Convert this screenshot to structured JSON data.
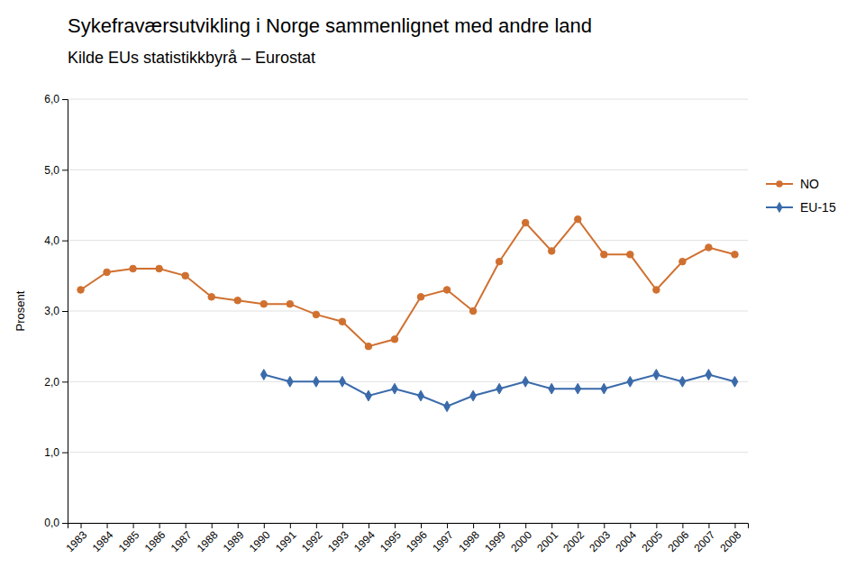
{
  "chart_data": {
    "type": "line",
    "title": "Sykefraværsutvikling i Norge sammenlignet med andre land",
    "subtitle": "Kilde EUs statistikkbyrå – Eurostat",
    "y_label": "Prosent",
    "x": [
      1983,
      1984,
      1985,
      1986,
      1987,
      1988,
      1989,
      1990,
      1991,
      1992,
      1993,
      1994,
      1995,
      1996,
      1997,
      1998,
      1999,
      2000,
      2001,
      2002,
      2003,
      2004,
      2005,
      2006,
      2007,
      2008
    ],
    "series": [
      {
        "name": "NO",
        "color": "#d07030",
        "marker": "circle",
        "values": [
          3.3,
          3.55,
          3.6,
          3.6,
          3.5,
          3.2,
          3.15,
          3.1,
          3.1,
          2.95,
          2.85,
          2.5,
          2.6,
          3.2,
          3.3,
          3.0,
          3.7,
          4.25,
          3.85,
          4.3,
          3.8,
          3.8,
          3.3,
          3.7,
          3.9,
          3.8
        ]
      },
      {
        "name": "EU-15",
        "color": "#3a6aaa",
        "marker": "diamond",
        "values": [
          null,
          null,
          null,
          null,
          null,
          null,
          null,
          2.1,
          2.0,
          2.0,
          2.0,
          1.8,
          1.9,
          1.8,
          1.65,
          1.8,
          1.9,
          2.0,
          1.9,
          1.9,
          1.9,
          2.0,
          2.1,
          2.0,
          2.1,
          2.0
        ]
      }
    ],
    "xlim": [
      1982.5,
      2008.5
    ],
    "xticks": [
      1983,
      1984,
      1985,
      1986,
      1987,
      1988,
      1989,
      1990,
      1991,
      1992,
      1993,
      1994,
      1995,
      1996,
      1997,
      1998,
      1999,
      2000,
      2001,
      2002,
      2003,
      2004,
      2005,
      2006,
      2007,
      2008
    ],
    "ylim": [
      0.0,
      6.0
    ],
    "yticks": [
      {
        "value": 0.0,
        "label": "0,0"
      },
      {
        "value": 1.0,
        "label": "1,0"
      },
      {
        "value": 2.0,
        "label": "2,0"
      },
      {
        "value": 3.0,
        "label": "3,0"
      },
      {
        "value": 4.0,
        "label": "4,0"
      },
      {
        "value": 5.0,
        "label": "5,0"
      },
      {
        "value": 6.0,
        "label": "6,0"
      }
    ],
    "grid": "y",
    "legend": "right"
  }
}
